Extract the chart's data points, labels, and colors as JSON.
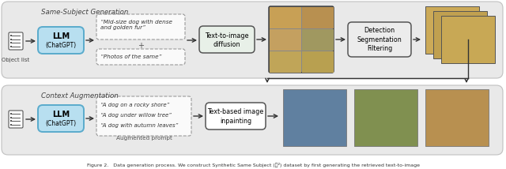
{
  "fig_width": 6.4,
  "fig_height": 2.14,
  "dpi": 100,
  "top_label": "Same-Subject Generation",
  "bottom_label": "Context Augmentation",
  "object_list_label": "Object list",
  "llm_label1": "LLM",
  "llm_label2": "(ChatGPT)",
  "prompt1_text": "“Mid-size dog with dense\nand golden fur”",
  "prompt2_text": "“Photos of the same”",
  "tti_label1": "Text-to-image",
  "tti_label2": "diffusion",
  "dsf_label1": "Detection",
  "dsf_label2": "Segmentation",
  "dsf_label3": "Filtering",
  "aug_prompts_line1": "“A dog on a rocky shore”",
  "aug_prompts_line2": "“A dog under willow tree”",
  "aug_prompts_line3": "“A dog with autumn leaves”",
  "aug_prompt_label": "Augmented prompt",
  "tbi_label1": "Text-based image",
  "tbi_label2": "inpainting",
  "caption": "Figure 2.   Data generation process. We construct Synthetic Same Subject (𝑴²) dataset by first generating the retrieved text-to-image",
  "panel_bg": "#e9e9e9",
  "panel_edge": "#c0c0c0",
  "llm_fill": "#b8dff0",
  "llm_edge": "#5aabcc",
  "tti_fill": "#e8f0e8",
  "tti_edge": "#555555",
  "dsf_fill": "#ececec",
  "dsf_edge": "#555555",
  "tbi_fill": "#ffffff",
  "tbi_edge": "#555555",
  "arrow_color": "#333333",
  "doc_color": "#ffffff",
  "doc_edge": "#555555"
}
